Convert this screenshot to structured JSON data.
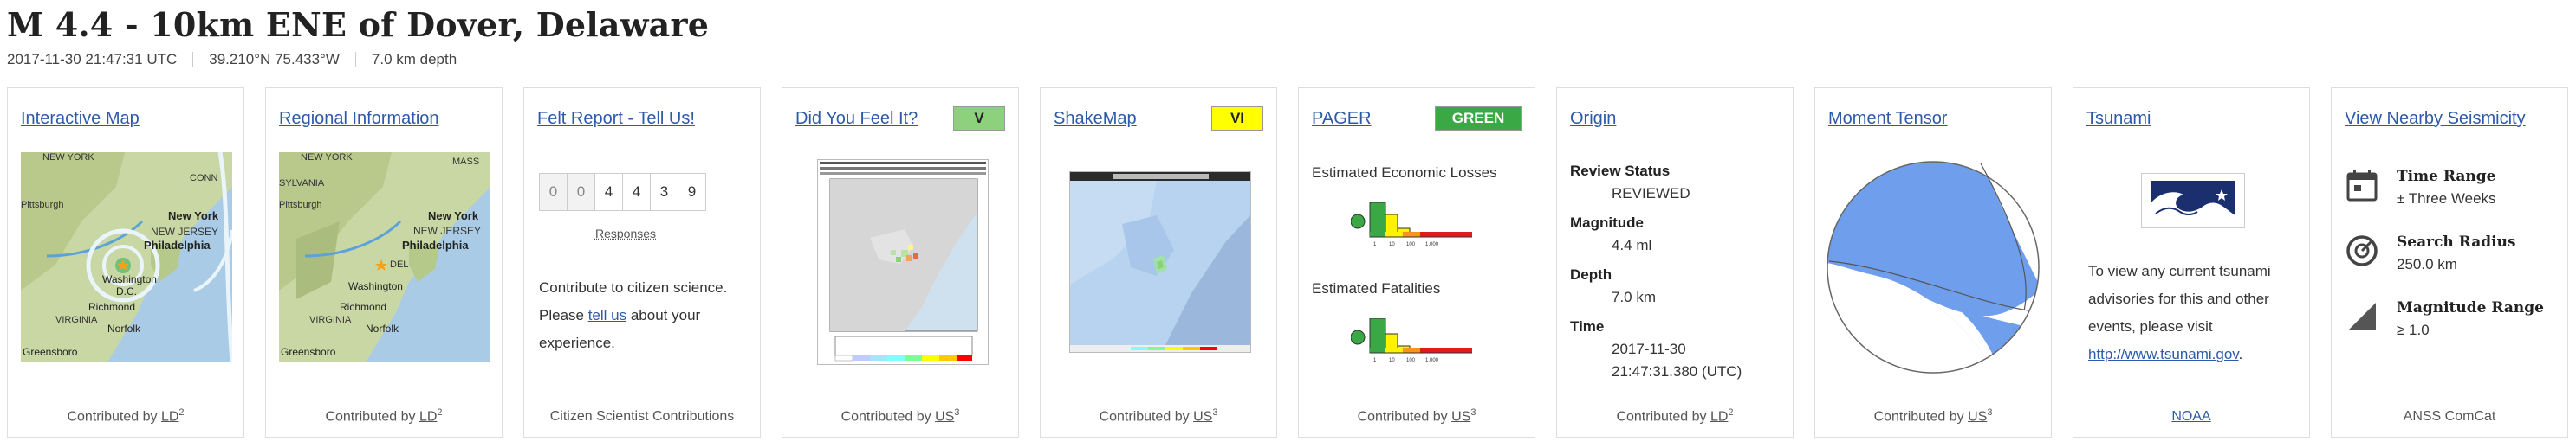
{
  "event": {
    "title": "M 4.4 - 10km ENE of Dover, Delaware",
    "time": "2017-11-30 21:47:31 UTC",
    "location": "39.210°N  75.433°W",
    "depth": "7.0 km depth"
  },
  "cards": {
    "interactive_map": {
      "link": "Interactive Map",
      "contributed_prefix": "Contributed by",
      "contributor": "LD",
      "sup": "2",
      "map_labels": [
        "NEW YORK",
        "CONN",
        "Pittsburgh",
        "New York",
        "NEW JERSEY",
        "Philadelphia",
        "Washington",
        "D.C.",
        "Richmond",
        "VIRGINIA",
        "Norfolk",
        "Greensboro"
      ]
    },
    "regional_info": {
      "link": "Regional Information",
      "contributed_prefix": "Contributed by",
      "contributor": "LD",
      "sup": "2",
      "map_labels": [
        "NEW YORK",
        "MASS",
        "Pittsburgh",
        "New York",
        "NEW JERSEY",
        "Philadelphia",
        "Washington",
        "Richmond",
        "VIRGINIA",
        "Norfolk",
        "Greensboro",
        "SYLVANIA",
        "DEL"
      ]
    },
    "felt_report": {
      "link": "Felt Report - Tell Us!",
      "cells": [
        "0",
        "0",
        "4",
        "4",
        "3",
        "9"
      ],
      "responses_label": "Responses",
      "text_1": "Contribute to citizen science.",
      "text_2_pre": "Please ",
      "text_2_link": "tell us",
      "text_2_post": " about your",
      "text_3": "experience.",
      "footer": "Citizen Scientist Contributions"
    },
    "dyfi": {
      "link": "Did You Feel It?",
      "badge": "V",
      "badge_color": "#8ed17d",
      "contributed_prefix": "Contributed by",
      "contributor": "US",
      "sup": "3"
    },
    "shakemap": {
      "link": "ShakeMap",
      "badge": "VI",
      "badge_color": "#ffff00",
      "contributed_prefix": "Contributed by",
      "contributor": "US",
      "sup": "3"
    },
    "pager": {
      "link": "PAGER",
      "badge": "GREEN",
      "badge_color": "#3aa845",
      "economic_label": "Estimated Economic Losses",
      "fatalities_label": "Estimated Fatalities",
      "contributed_prefix": "Contributed by",
      "contributor": "US",
      "sup": "3"
    },
    "origin": {
      "link": "Origin",
      "review_status_label": "Review Status",
      "review_status": "REVIEWED",
      "magnitude_label": "Magnitude",
      "magnitude": "4.4 ml",
      "depth_label": "Depth",
      "depth": "7.0 km",
      "time_label": "Time",
      "time_date": "2017-11-30",
      "time_clock": "21:47:31.380 (UTC)",
      "contributed_prefix": "Contributed by",
      "contributor": "LD",
      "sup": "2"
    },
    "moment_tensor": {
      "link": "Moment Tensor",
      "contributed_prefix": "Contributed by",
      "contributor": "US",
      "sup": "3"
    },
    "tsunami": {
      "link": "Tsunami",
      "text_1": "To view any current tsunami",
      "text_2": "advisories for this and other",
      "text_3": "events, please visit",
      "url": "http://www.tsunami.gov",
      "url_suffix": ".",
      "footer": "NOAA"
    },
    "nearby": {
      "link": "View Nearby Seismicity",
      "time_range_label": "Time Range",
      "time_range": "± Three Weeks",
      "search_radius_label": "Search Radius",
      "search_radius": "250.0 km",
      "magnitude_range_label": "Magnitude Range",
      "magnitude_range": "≥ 1.0",
      "footer": "ANSS ComCat"
    }
  }
}
